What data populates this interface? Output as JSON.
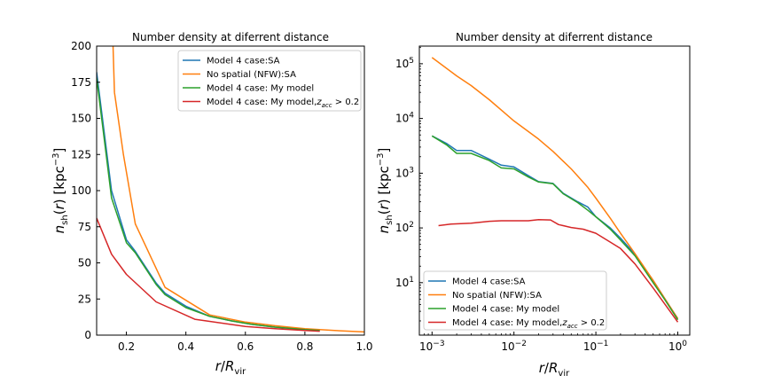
{
  "colors": {
    "series": [
      "#1f77b4",
      "#ff7f0e",
      "#2ca02c",
      "#d62728"
    ],
    "axes": "#000000",
    "background": "#ffffff"
  },
  "chart_data": [
    {
      "type": "line",
      "title": "Number density at diferrent distance",
      "xlabel": "r/R_vir",
      "ylabel": "n_sh(r) [kpc^-3]",
      "xscale": "linear",
      "yscale": "linear",
      "xlim": [
        0.1,
        1.0
      ],
      "ylim": [
        0,
        200
      ],
      "xticks": [
        0.2,
        0.4,
        0.6,
        0.8,
        1.0
      ],
      "xtick_labels": [
        "0.2",
        "0.4",
        "0.6",
        "0.8",
        "1.0"
      ],
      "yticks": [
        0,
        25,
        50,
        75,
        100,
        125,
        150,
        175,
        200
      ],
      "ytick_labels": [
        "0",
        "25",
        "50",
        "75",
        "100",
        "125",
        "150",
        "175",
        "200"
      ],
      "grid": false,
      "legend_position": "top-right",
      "series": [
        {
          "name": "Model 4 case:SA",
          "x": [
            0.1,
            0.15,
            0.2,
            0.23,
            0.3,
            0.33,
            0.4,
            0.48,
            0.55,
            0.62,
            0.7,
            0.8,
            0.85
          ],
          "y": [
            182,
            100,
            66,
            58,
            36,
            29,
            20,
            13,
            10,
            7.5,
            5.5,
            3.8,
            3.2
          ]
        },
        {
          "name": "No spatial (NFW):SA",
          "x": [
            0.155,
            0.16,
            0.19,
            0.23,
            0.33,
            0.48,
            0.6,
            0.7,
            0.8,
            0.9,
            1.0
          ],
          "y": [
            200,
            168,
            125,
            77,
            33,
            14,
            9,
            6.5,
            4.5,
            3.2,
            2.2
          ]
        },
        {
          "name": "Model 4 case: My model",
          "x": [
            0.1,
            0.15,
            0.2,
            0.23,
            0.3,
            0.33,
            0.4,
            0.48,
            0.55,
            0.62,
            0.7,
            0.8,
            0.85
          ],
          "y": [
            178,
            95,
            64,
            57,
            35,
            28,
            19,
            13,
            10,
            7.5,
            5.5,
            3.8,
            3.2
          ]
        },
        {
          "name": "Model 4 case: My model,z_acc > 0.2",
          "x": [
            0.1,
            0.15,
            0.2,
            0.3,
            0.43,
            0.6,
            0.7,
            0.8,
            0.85
          ],
          "y": [
            81,
            56,
            42,
            23,
            11,
            6,
            4.5,
            3.2,
            2.7
          ]
        }
      ]
    },
    {
      "type": "line",
      "title": "Number density at diferrent distance",
      "xlabel": "r/R_vir",
      "ylabel": "n_sh(r) [kpc^-3]",
      "xscale": "log",
      "yscale": "log",
      "xlim": [
        0.0007,
        1.4
      ],
      "ylim": [
        1.1,
        210000
      ],
      "xticks": [
        0.001,
        0.01,
        0.1,
        1
      ],
      "xtick_labels": [
        "10^-3",
        "10^-2",
        "10^-1",
        "10^0"
      ],
      "yticks": [
        10,
        100,
        1000,
        10000,
        100000
      ],
      "ytick_labels": [
        "10^1",
        "10^2",
        "10^3",
        "10^4",
        "10^5"
      ],
      "grid": false,
      "legend_position": "bottom-left",
      "series": [
        {
          "name": "Model 4 case:SA",
          "x": [
            0.001,
            0.0015,
            0.002,
            0.003,
            0.005,
            0.007,
            0.01,
            0.015,
            0.02,
            0.03,
            0.04,
            0.06,
            0.08,
            0.1,
            0.15,
            0.2,
            0.3,
            0.5,
            0.7,
            1.0
          ],
          "y": [
            4800,
            3500,
            2600,
            2600,
            1800,
            1400,
            1300,
            900,
            700,
            650,
            430,
            300,
            240,
            160,
            100,
            65,
            33,
            11,
            5,
            2.2
          ]
        },
        {
          "name": "No spatial (NFW):SA",
          "x": [
            0.001,
            0.002,
            0.003,
            0.005,
            0.01,
            0.02,
            0.03,
            0.05,
            0.08,
            0.1,
            0.15,
            0.2,
            0.3,
            0.5,
            0.7,
            1.0
          ],
          "y": [
            130000,
            60000,
            40000,
            22000,
            9000,
            4200,
            2500,
            1200,
            550,
            350,
            150,
            80,
            34,
            11,
            5,
            2.2
          ]
        },
        {
          "name": "Model 4 case: My model",
          "x": [
            0.001,
            0.0015,
            0.002,
            0.003,
            0.005,
            0.007,
            0.01,
            0.015,
            0.02,
            0.03,
            0.04,
            0.06,
            0.08,
            0.1,
            0.15,
            0.2,
            0.3,
            0.5,
            0.7,
            1.0
          ],
          "y": [
            4800,
            3300,
            2300,
            2300,
            1700,
            1250,
            1200,
            850,
            690,
            640,
            420,
            290,
            210,
            160,
            95,
            60,
            31,
            10,
            4.8,
            2.1
          ]
        },
        {
          "name": "Model 4 case: My model,z_acc > 0.2",
          "x": [
            0.0012,
            0.0017,
            0.003,
            0.005,
            0.007,
            0.01,
            0.015,
            0.02,
            0.028,
            0.035,
            0.05,
            0.07,
            0.1,
            0.15,
            0.2,
            0.3,
            0.5,
            0.7,
            1.0
          ],
          "y": [
            110,
            118,
            122,
            132,
            135,
            135,
            135,
            142,
            140,
            115,
            102,
            95,
            80,
            55,
            42,
            22,
            8,
            4,
            1.9
          ]
        }
      ]
    }
  ]
}
